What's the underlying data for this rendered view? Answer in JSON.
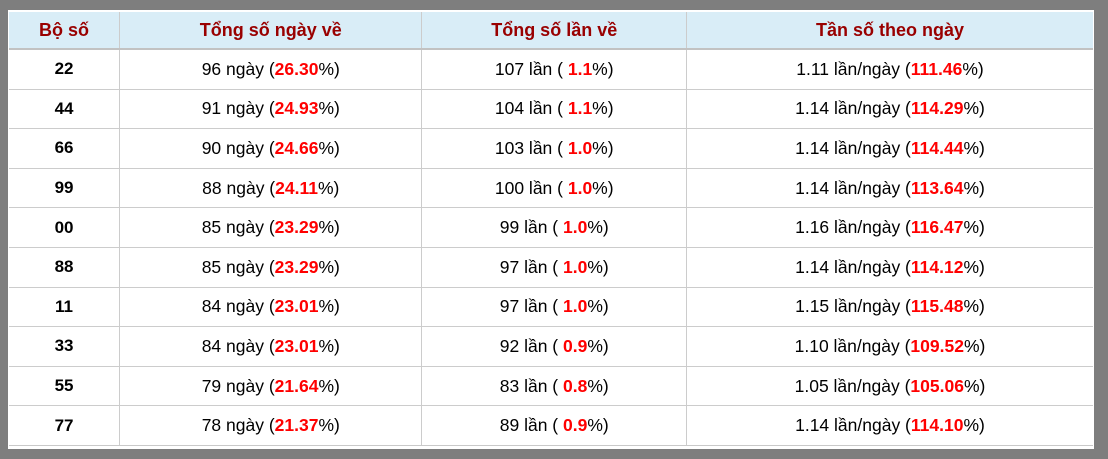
{
  "colors": {
    "frame_gray": "#7e7e7e",
    "header_bg": "#d9edf7",
    "header_text": "#990000",
    "highlight_red": "#ff0000",
    "border_light": "#cccccc"
  },
  "table": {
    "headers": [
      "Bộ số",
      "Tổng số ngày về",
      "Tổng số lần về",
      "Tần số theo ngày"
    ],
    "cell_names": [
      "cell-bo-so",
      "cell-tong-so-ngay-ve",
      "cell-tong-so-lan-ve",
      "cell-tan-so-theo-ngay"
    ],
    "rows": [
      {
        "cells": [
          [
            {
              "t": "22"
            }
          ],
          [
            {
              "t": "96 ngày ("
            },
            {
              "t": "26.30",
              "red": true
            },
            {
              "t": "%)"
            }
          ],
          [
            {
              "t": "107 lần ( "
            },
            {
              "t": "1.1",
              "red": true
            },
            {
              "t": "%)"
            }
          ],
          [
            {
              "t": "1.11 lần/ngày ("
            },
            {
              "t": "111.46",
              "red": true
            },
            {
              "t": "%)"
            }
          ]
        ]
      },
      {
        "cells": [
          [
            {
              "t": "44"
            }
          ],
          [
            {
              "t": "91 ngày ("
            },
            {
              "t": "24.93",
              "red": true
            },
            {
              "t": "%)"
            }
          ],
          [
            {
              "t": "104 lần ( "
            },
            {
              "t": "1.1",
              "red": true
            },
            {
              "t": "%)"
            }
          ],
          [
            {
              "t": "1.14 lần/ngày ("
            },
            {
              "t": "114.29",
              "red": true
            },
            {
              "t": "%)"
            }
          ]
        ]
      },
      {
        "cells": [
          [
            {
              "t": "66"
            }
          ],
          [
            {
              "t": "90 ngày ("
            },
            {
              "t": "24.66",
              "red": true
            },
            {
              "t": "%)"
            }
          ],
          [
            {
              "t": "103 lần ( "
            },
            {
              "t": "1.0",
              "red": true
            },
            {
              "t": "%)"
            }
          ],
          [
            {
              "t": "1.14 lần/ngày ("
            },
            {
              "t": "114.44",
              "red": true
            },
            {
              "t": "%)"
            }
          ]
        ]
      },
      {
        "cells": [
          [
            {
              "t": "99"
            }
          ],
          [
            {
              "t": "88 ngày ("
            },
            {
              "t": "24.11",
              "red": true
            },
            {
              "t": "%)"
            }
          ],
          [
            {
              "t": "100 lần ( "
            },
            {
              "t": "1.0",
              "red": true
            },
            {
              "t": "%)"
            }
          ],
          [
            {
              "t": "1.14 lần/ngày ("
            },
            {
              "t": "113.64",
              "red": true
            },
            {
              "t": "%)"
            }
          ]
        ]
      },
      {
        "cells": [
          [
            {
              "t": "00"
            }
          ],
          [
            {
              "t": "85 ngày ("
            },
            {
              "t": "23.29",
              "red": true
            },
            {
              "t": "%)"
            }
          ],
          [
            {
              "t": "99 lần ( "
            },
            {
              "t": "1.0",
              "red": true
            },
            {
              "t": "%)"
            }
          ],
          [
            {
              "t": "1.16 lần/ngày ("
            },
            {
              "t": "116.47",
              "red": true
            },
            {
              "t": "%)"
            }
          ]
        ]
      },
      {
        "cells": [
          [
            {
              "t": "88"
            }
          ],
          [
            {
              "t": "85 ngày ("
            },
            {
              "t": "23.29",
              "red": true
            },
            {
              "t": "%)"
            }
          ],
          [
            {
              "t": "97 lần ( "
            },
            {
              "t": "1.0",
              "red": true
            },
            {
              "t": "%)"
            }
          ],
          [
            {
              "t": "1.14 lần/ngày ("
            },
            {
              "t": "114.12",
              "red": true
            },
            {
              "t": "%)"
            }
          ]
        ]
      },
      {
        "cells": [
          [
            {
              "t": "11"
            }
          ],
          [
            {
              "t": "84 ngày ("
            },
            {
              "t": "23.01",
              "red": true
            },
            {
              "t": "%)"
            }
          ],
          [
            {
              "t": "97 lần ( "
            },
            {
              "t": "1.0",
              "red": true
            },
            {
              "t": "%)"
            }
          ],
          [
            {
              "t": "1.15 lần/ngày ("
            },
            {
              "t": "115.48",
              "red": true
            },
            {
              "t": "%)"
            }
          ]
        ]
      },
      {
        "cells": [
          [
            {
              "t": "33"
            }
          ],
          [
            {
              "t": "84 ngày ("
            },
            {
              "t": "23.01",
              "red": true
            },
            {
              "t": "%)"
            }
          ],
          [
            {
              "t": "92 lần ( "
            },
            {
              "t": "0.9",
              "red": true
            },
            {
              "t": "%)"
            }
          ],
          [
            {
              "t": "1.10 lần/ngày ("
            },
            {
              "t": "109.52",
              "red": true
            },
            {
              "t": "%)"
            }
          ]
        ]
      },
      {
        "cells": [
          [
            {
              "t": "55"
            }
          ],
          [
            {
              "t": "79 ngày ("
            },
            {
              "t": "21.64",
              "red": true
            },
            {
              "t": "%)"
            }
          ],
          [
            {
              "t": "83 lần ( "
            },
            {
              "t": "0.8",
              "red": true
            },
            {
              "t": "%)"
            }
          ],
          [
            {
              "t": "1.05 lần/ngày ("
            },
            {
              "t": "105.06",
              "red": true
            },
            {
              "t": "%)"
            }
          ]
        ]
      },
      {
        "cells": [
          [
            {
              "t": "77"
            }
          ],
          [
            {
              "t": "78 ngày ("
            },
            {
              "t": "21.37",
              "red": true
            },
            {
              "t": "%)"
            }
          ],
          [
            {
              "t": "89 lần ( "
            },
            {
              "t": "0.9",
              "red": true
            },
            {
              "t": "%)"
            }
          ],
          [
            {
              "t": "1.14 lần/ngày ("
            },
            {
              "t": "114.10",
              "red": true
            },
            {
              "t": "%)"
            }
          ]
        ]
      }
    ]
  },
  "chart_data": {
    "type": "table",
    "columns": [
      "Bộ số",
      "Tổng số ngày về",
      "Tổng số lần về",
      "Tần số theo ngày"
    ],
    "rows": [
      [
        "22",
        "96 ngày (26.30%)",
        "107 lần ( 1.1%)",
        "1.11 lần/ngày (111.46%)"
      ],
      [
        "44",
        "91 ngày (24.93%)",
        "104 lần ( 1.1%)",
        "1.14 lần/ngày (114.29%)"
      ],
      [
        "66",
        "90 ngày (24.66%)",
        "103 lần ( 1.0%)",
        "1.14 lần/ngày (114.44%)"
      ],
      [
        "99",
        "88 ngày (24.11%)",
        "100 lần ( 1.0%)",
        "1.14 lần/ngày (113.64%)"
      ],
      [
        "00",
        "85 ngày (23.29%)",
        "99 lần ( 1.0%)",
        "1.16 lần/ngày (116.47%)"
      ],
      [
        "88",
        "85 ngày (23.29%)",
        "97 lần ( 1.0%)",
        "1.14 lần/ngày (114.12%)"
      ],
      [
        "11",
        "84 ngày (23.01%)",
        "97 lần ( 1.0%)",
        "1.15 lần/ngày (115.48%)"
      ],
      [
        "33",
        "84 ngày (23.01%)",
        "92 lần ( 0.9%)",
        "1.10 lần/ngày (109.52%)"
      ],
      [
        "55",
        "79 ngày (21.64%)",
        "83 lần ( 0.8%)",
        "1.05 lần/ngày (105.06%)"
      ],
      [
        "77",
        "78 ngày (21.37%)",
        "89 lần ( 0.9%)",
        "1.14 lần/ngày (114.10%)"
      ]
    ]
  }
}
